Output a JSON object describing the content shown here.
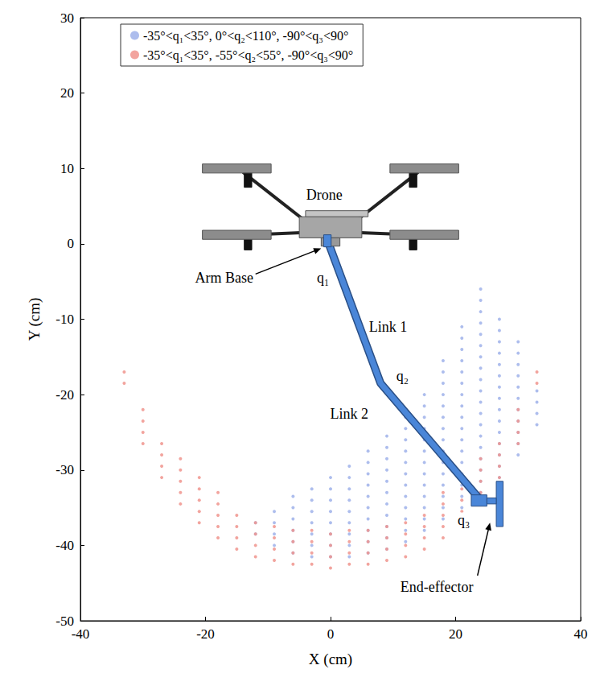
{
  "chart_data": {
    "type": "scatter",
    "xlabel": "X (cm)",
    "ylabel": "Y (cm)",
    "xlim": [
      -40,
      40
    ],
    "xticks": [
      -40,
      -20,
      0,
      20,
      40
    ],
    "ylim": [
      -50,
      30
    ],
    "yticks": [
      -50,
      -40,
      -30,
      -20,
      -10,
      0,
      10,
      20,
      30
    ],
    "grid": false,
    "legend": "top",
    "marker": "circle",
    "series": [
      {
        "name": "-35°<q₁<35°, 0°<q₂<110°, -90°<q₃<90°",
        "color": "#9fb2ea",
        "x": [
          -12,
          -12,
          -9,
          -9,
          -9,
          -9,
          -6,
          -6,
          -6,
          -6,
          -6,
          -6,
          -3,
          -3,
          -3,
          -3,
          -3,
          -3,
          -3,
          0,
          0,
          0,
          0,
          0,
          0,
          0,
          0,
          3,
          3,
          3,
          3,
          3,
          3,
          3,
          3,
          3,
          6,
          6,
          6,
          6,
          6,
          6,
          6,
          6,
          6,
          6,
          9,
          9,
          9,
          9,
          9,
          9,
          9,
          9,
          9,
          9,
          9,
          12,
          12,
          12,
          12,
          12,
          12,
          12,
          12,
          12,
          12,
          12,
          12,
          15,
          15,
          15,
          15,
          15,
          15,
          15,
          15,
          15,
          15,
          15,
          15,
          15,
          18,
          18,
          18,
          18,
          18,
          18,
          18,
          18,
          18,
          18,
          18,
          18,
          18,
          18,
          18,
          21,
          21,
          21,
          21,
          21,
          21,
          21,
          21,
          21,
          21,
          21,
          21,
          21,
          21,
          21,
          21,
          21,
          24,
          24,
          24,
          24,
          24,
          24,
          24,
          24,
          24,
          24,
          24,
          24,
          24,
          24,
          24,
          24,
          24,
          24,
          24,
          27,
          27,
          27,
          27,
          27,
          27,
          27,
          27,
          27,
          27,
          27,
          27,
          27,
          27,
          27,
          30,
          30,
          30,
          30,
          30,
          30,
          30,
          30,
          30,
          30,
          30,
          33,
          33,
          33,
          33
        ],
        "values": [
          -38.5,
          -37,
          -40,
          -38.5,
          -37,
          -35.5,
          -41,
          -39.5,
          -38,
          -36.5,
          -35,
          -33.5,
          -41.5,
          -40,
          -38.5,
          -37,
          -35.5,
          -34,
          -32.5,
          -41.5,
          -40,
          -38.5,
          -37,
          -35.5,
          -34,
          -32.5,
          -31,
          -41.5,
          -40,
          -38.5,
          -37,
          -35.5,
          -34,
          -32.5,
          -31,
          -29.5,
          -41,
          -39.5,
          -38,
          -36.5,
          -35,
          -33.5,
          -32,
          -30.5,
          -29,
          -27.5,
          -40.5,
          -39,
          -37.5,
          -36,
          -34.5,
          -33,
          -31.5,
          -30,
          -28.5,
          -27,
          -25.5,
          -39.5,
          -38,
          -36.5,
          -35,
          -33.5,
          -32,
          -30.5,
          -29,
          -27.5,
          -26,
          -24.5,
          -23,
          -38,
          -36.5,
          -35,
          -33.5,
          -32,
          -30.5,
          -29,
          -27.5,
          -26,
          -24.5,
          -23,
          -21.5,
          -20,
          -36.5,
          -35,
          -33.5,
          -32,
          -30.5,
          -29,
          -27.5,
          -26,
          -24.5,
          -23,
          -21.5,
          -20,
          -18.5,
          -17,
          -15.5,
          -35,
          -33.5,
          -32,
          -30.5,
          -29,
          -27.5,
          -26,
          -24.5,
          -23,
          -21.5,
          -20,
          -18.5,
          -17,
          -15.5,
          -14,
          -12.5,
          -11,
          -33,
          -31.5,
          -30,
          -28.5,
          -27,
          -25.5,
          -24,
          -22.5,
          -21,
          -19.5,
          -18,
          -16.5,
          -15,
          -13.5,
          -12,
          -10.5,
          -9,
          -7.5,
          -6,
          -31,
          -29.5,
          -28,
          -26.5,
          -25,
          -23.5,
          -22,
          -20.5,
          -19,
          -17.5,
          -16,
          -14.5,
          -13,
          -11.5,
          -10,
          -28,
          -26.5,
          -25,
          -23.5,
          -22,
          -20.5,
          -19,
          -17.5,
          -16,
          -14.5,
          -13,
          -24,
          -22.5,
          -21,
          -19.5
        ]
      },
      {
        "name": "-35°<q₁<35°, -55°<q₂<55°, -90°<q₃<90°",
        "color": "#f0948d",
        "x": [
          -33,
          -33,
          -30,
          -30,
          -30,
          -30,
          -27,
          -27,
          -27,
          -27,
          -24,
          -24,
          -24,
          -24,
          -24,
          -21,
          -21,
          -21,
          -21,
          -21,
          -18,
          -18,
          -18,
          -18,
          -18,
          -15,
          -15,
          -15,
          -15,
          -12,
          -12,
          -12,
          -12,
          -9,
          -9,
          -9,
          -9,
          -6,
          -6,
          -6,
          -6,
          -3,
          -3,
          -3,
          -3,
          0,
          0,
          0,
          0,
          3,
          3,
          3,
          3,
          6,
          6,
          6,
          6,
          9,
          9,
          9,
          9,
          12,
          12,
          12,
          12,
          15,
          15,
          15,
          15,
          18,
          18,
          18,
          18,
          18,
          21,
          21,
          21,
          21,
          21,
          24,
          24,
          24,
          24,
          24,
          27,
          27,
          27,
          27,
          30,
          30,
          30,
          30,
          33,
          33
        ],
        "values": [
          -18.5,
          -17,
          -26.5,
          -25,
          -23.5,
          -22,
          -31,
          -29.5,
          -28,
          -26.5,
          -34.5,
          -33,
          -31.5,
          -30,
          -28.5,
          -37,
          -35.5,
          -34,
          -32.5,
          -31,
          -39,
          -37.5,
          -36,
          -34.5,
          -33,
          -40.5,
          -39,
          -37.5,
          -36,
          -41.5,
          -40,
          -38.5,
          -37,
          -42,
          -40.5,
          -39,
          -37.5,
          -42.5,
          -41,
          -39.5,
          -38,
          -42.5,
          -41,
          -39.5,
          -38,
          -43,
          -41.5,
          -40,
          -38.5,
          -42.5,
          -41,
          -39.5,
          -38,
          -42.5,
          -41,
          -39.5,
          -38,
          -42,
          -40.5,
          -39,
          -37.5,
          -41.5,
          -40,
          -38.5,
          -37,
          -40.5,
          -39,
          -37.5,
          -36,
          -39,
          -37.5,
          -36,
          -34.5,
          -33,
          -37,
          -35.5,
          -34,
          -32.5,
          -31,
          -34.5,
          -33,
          -31.5,
          -30,
          -28.5,
          -31,
          -29.5,
          -28,
          -26.5,
          -26.5,
          -25,
          -23.5,
          -22,
          -18.5,
          -17
        ]
      }
    ],
    "arm": {
      "x": [
        -0.5,
        8,
        24
      ],
      "y": [
        0.5,
        -18.5,
        -34
      ],
      "color": "#4a86d8"
    },
    "annotations": [
      "Drone",
      "Arm Base",
      "q₁",
      "Link 1",
      "q₂",
      "Link 2",
      "q₃",
      "End-effector"
    ]
  }
}
